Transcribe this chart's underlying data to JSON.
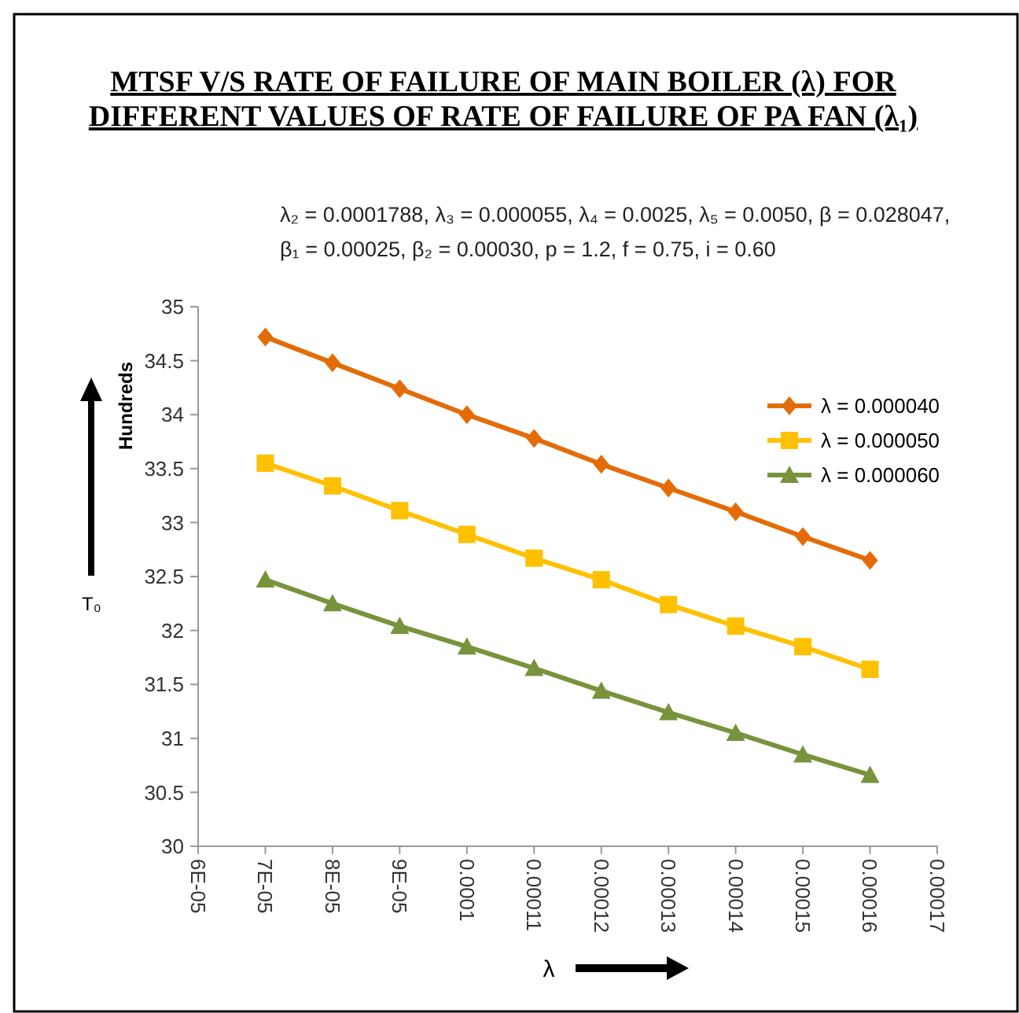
{
  "chart_data": {
    "type": "line",
    "title": "MTSF V/S RATE OF FAILURE OF MAIN BOILER (λ) FOR\nDIFFERENT VALUES OF RATE OF FAILURE OF PA FAN (λ₁)",
    "subtitle": "λ₂ = 0.0001788, λ₃ = 0.000055, λ₄ = 0.0025, λ₅ = 0.0050, β = 0.028047,\nβ₁ = 0.00025,  β₂ =  0.00030, p =  1.2, f = 0.75, i = 0.60",
    "annotations": [
      "Hundreds"
    ],
    "xlabel": "λ",
    "ylabel": "T₀",
    "x": [
      7e-05,
      8e-05,
      9e-05,
      0.0001,
      0.00011,
      0.00012,
      0.00013,
      0.00014,
      0.00015,
      0.00016
    ],
    "series": [
      {
        "name": "λ = 0.000040",
        "color": "#e36c09",
        "marker": "diamond",
        "values": [
          34.72,
          34.48,
          34.24,
          34.0,
          33.78,
          33.54,
          33.32,
          33.1,
          32.87,
          32.65
        ]
      },
      {
        "name": "λ = 0.000050",
        "color": "#ffc000",
        "marker": "square",
        "values": [
          33.55,
          33.34,
          33.11,
          32.89,
          32.67,
          32.47,
          32.24,
          32.04,
          31.85,
          31.64
        ]
      },
      {
        "name": "λ = 0.000060",
        "color": "#77933c",
        "marker": "triangle",
        "values": [
          32.47,
          32.25,
          32.04,
          31.85,
          31.65,
          31.44,
          31.24,
          31.05,
          30.85,
          30.66
        ]
      }
    ],
    "xlim": [
      6e-05,
      0.00017
    ],
    "xticks": [
      {
        "value": 6e-05,
        "label": "6E-05"
      },
      {
        "value": 7e-05,
        "label": "7E-05"
      },
      {
        "value": 8e-05,
        "label": "8E-05"
      },
      {
        "value": 9e-05,
        "label": "9E-05"
      },
      {
        "value": 0.0001,
        "label": "0.0001"
      },
      {
        "value": 0.00011,
        "label": "0.00011"
      },
      {
        "value": 0.00012,
        "label": "0.00012"
      },
      {
        "value": 0.00013,
        "label": "0.00013"
      },
      {
        "value": 0.00014,
        "label": "0.00014"
      },
      {
        "value": 0.00015,
        "label": "0.00015"
      },
      {
        "value": 0.00016,
        "label": "0.00016"
      },
      {
        "value": 0.00017,
        "label": "0.00017"
      }
    ],
    "ylim": [
      30,
      35
    ],
    "yticks": [
      30,
      30.5,
      31,
      31.5,
      32,
      32.5,
      33,
      33.5,
      34,
      34.5,
      35
    ],
    "grid": false,
    "legend": "right",
    "line_style": "solid"
  }
}
